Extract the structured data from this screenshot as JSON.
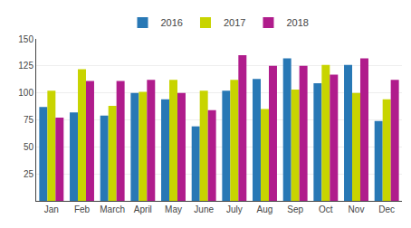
{
  "chart_data": {
    "type": "bar",
    "categories": [
      "Jan",
      "Feb",
      "March",
      "April",
      "May",
      "June",
      "July",
      "Aug",
      "Sep",
      "Oct",
      "Nov",
      "Dec"
    ],
    "series": [
      {
        "name": "2016",
        "color": "#2878b5",
        "values": [
          87,
          82,
          79,
          100,
          94,
          69,
          102,
          113,
          132,
          109,
          126,
          74
        ]
      },
      {
        "name": "2017",
        "color": "#c8d400",
        "values": [
          102,
          122,
          88,
          101,
          112,
          102,
          112,
          85,
          103,
          126,
          100,
          94
        ]
      },
      {
        "name": "2018",
        "color": "#b01c8c",
        "values": [
          77,
          111,
          111,
          112,
          100,
          84,
          135,
          125,
          125,
          117,
          132,
          112
        ]
      }
    ],
    "ylim": [
      0,
      150
    ],
    "yticks": [
      25,
      50,
      75,
      100,
      125,
      150
    ],
    "grid": true,
    "legend": "top"
  }
}
